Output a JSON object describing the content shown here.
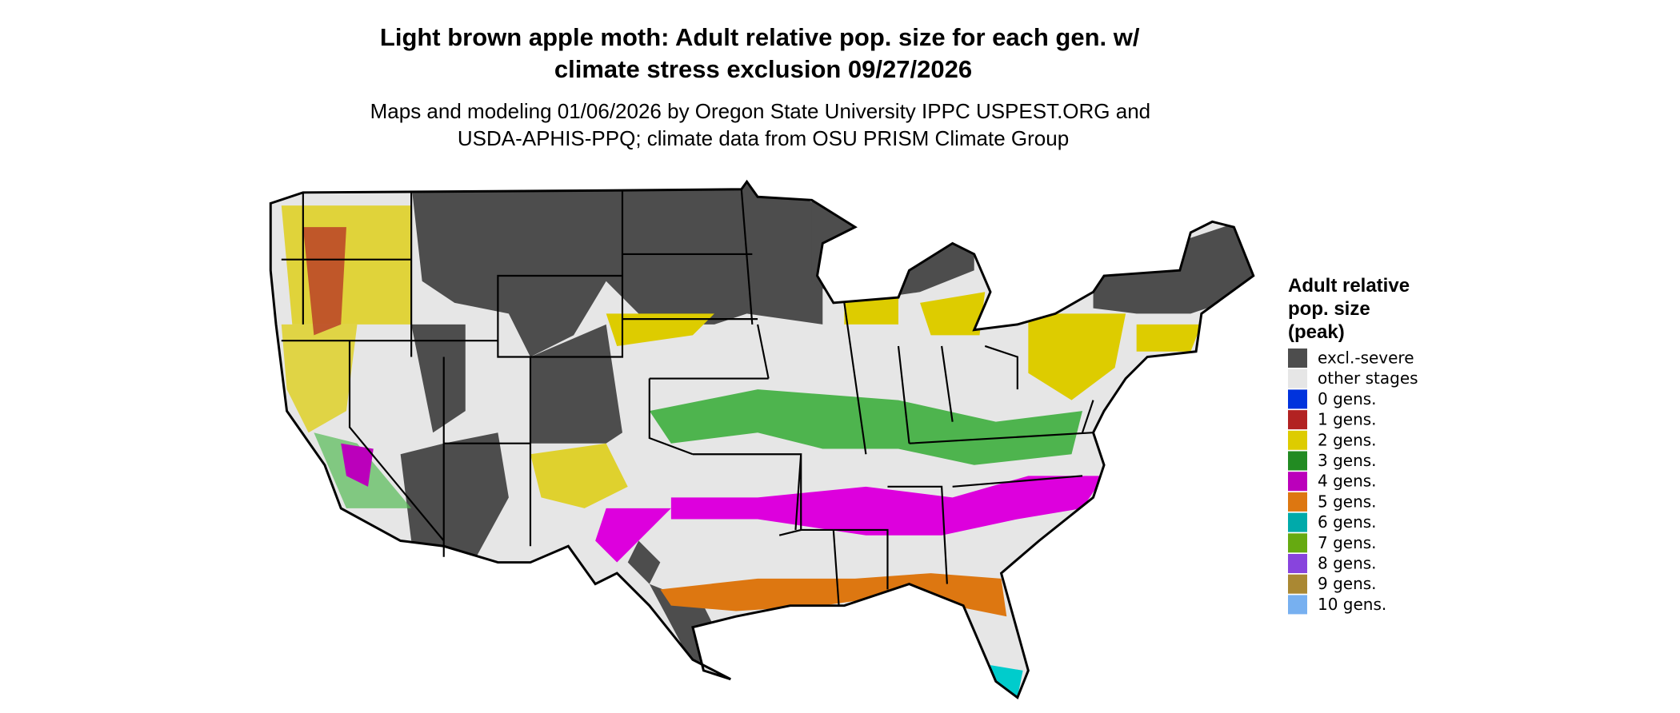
{
  "header": {
    "title": "Light brown apple moth: Adult relative pop. size for each gen. w/ climate stress exclusion 09/27/2026",
    "subtitle": "Maps and modeling 01/06/2026 by Oregon State University IPPC USPEST.ORG and USDA-APHIS-PPQ; climate data from OSU PRISM Climate Group"
  },
  "legend": {
    "title": "Adult relative pop. size (peak)",
    "items": [
      {
        "label": "excl.-severe",
        "color": "#4d4d4d"
      },
      {
        "label": "other stages",
        "color": "#e6e6e6"
      },
      {
        "label": "0 gens.",
        "color": "#0033dd"
      },
      {
        "label": "1 gens.",
        "color": "#b22222"
      },
      {
        "label": "2 gens.",
        "color": "#ddcc00"
      },
      {
        "label": "3 gens.",
        "color": "#228b22"
      },
      {
        "label": "4 gens.",
        "color": "#bb00bb"
      },
      {
        "label": "5 gens.",
        "color": "#dd7711"
      },
      {
        "label": "6 gens.",
        "color": "#00aaaa"
      },
      {
        "label": "7 gens.",
        "color": "#66aa11"
      },
      {
        "label": "8 gens.",
        "color": "#8844dd"
      },
      {
        "label": "9 gens.",
        "color": "#aa8833"
      },
      {
        "label": "10 gens.",
        "color": "#77b0f0"
      }
    ]
  }
}
